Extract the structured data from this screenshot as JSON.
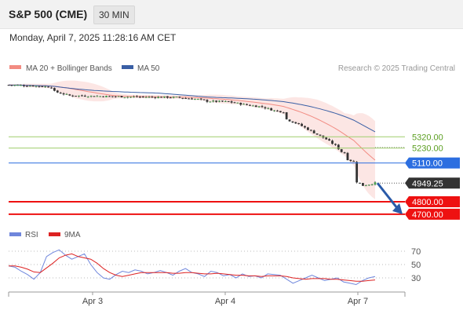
{
  "header": {
    "instrument": "S&P 500 (CME)",
    "timeframe": "30 MIN",
    "datetime": "Monday, April 7, 2025 11:28:16 AM CET"
  },
  "legend": {
    "ma20": "MA 20 + Bollinger Bands",
    "ma50": "MA 50",
    "copyright": "Research © 2025 Trading Central",
    "rsi": "RSI",
    "rsi_ma": "9MA"
  },
  "colors": {
    "ma20": "#f28b82",
    "ma50": "#3a5fa5",
    "resistance_green": "#9fce6c",
    "pivot_blue": "#2c6ee0",
    "support_red": "#ee1111",
    "price_tag": "#333333",
    "rsi": "#6f86dc",
    "rsi_ma": "#dd2222"
  },
  "chart_data": [
    {
      "type": "candlestick",
      "title": "",
      "x_ticks": [
        "Apr 3",
        "Apr 4",
        "Apr 7"
      ],
      "levels": [
        {
          "label": "5320.00",
          "value": 5320,
          "kind": "resistance"
        },
        {
          "label": "5230.00",
          "value": 5230,
          "kind": "resistance"
        },
        {
          "label": "5110.00",
          "value": 5110,
          "kind": "pivot"
        },
        {
          "label": "4800.00",
          "value": 4800,
          "kind": "support"
        },
        {
          "label": "4700.00",
          "value": 4700,
          "kind": "support"
        }
      ],
      "last_price": {
        "label": "4949.25",
        "value": 4949.25
      },
      "forecast": {
        "from": 4949.25,
        "to": 4700,
        "direction": "down"
      },
      "series": [
        {
          "name": "MA 20 + Bollinger Bands",
          "kind": "ma20_band"
        },
        {
          "name": "MA 50",
          "kind": "ma50"
        }
      ],
      "close_path": [
        [
          0,
          5735
        ],
        [
          8,
          5728
        ],
        [
          14,
          5718
        ],
        [
          15,
          5682
        ],
        [
          20,
          5650
        ],
        [
          28,
          5646
        ],
        [
          40,
          5640
        ],
        [
          55,
          5636
        ],
        [
          62,
          5620
        ],
        [
          65,
          5605
        ],
        [
          72,
          5600
        ],
        [
          78,
          5575
        ],
        [
          83,
          5560
        ],
        [
          87,
          5530
        ],
        [
          90,
          5520
        ],
        [
          91,
          5460
        ],
        [
          95,
          5420
        ],
        [
          98,
          5380
        ],
        [
          101,
          5340
        ],
        [
          104,
          5300
        ],
        [
          107,
          5250
        ],
        [
          109,
          5200
        ],
        [
          110,
          5190
        ],
        [
          111,
          5140
        ],
        [
          113,
          5120
        ],
        [
          114,
          4960
        ],
        [
          116,
          4930
        ],
        [
          118,
          4940
        ],
        [
          120,
          4949.25
        ]
      ]
    },
    {
      "type": "line",
      "title": "",
      "ylim": [
        0,
        100
      ],
      "y_ticks": [
        70,
        50,
        30
      ],
      "x_ticks": [
        "Apr 3",
        "Apr 4",
        "Apr 7"
      ],
      "series": [
        {
          "name": "RSI",
          "values": [
            48,
            46,
            40,
            35,
            28,
            38,
            62,
            68,
            72,
            64,
            58,
            62,
            66,
            50,
            38,
            30,
            28,
            35,
            40,
            38,
            42,
            40,
            36,
            38,
            41,
            38,
            34,
            40,
            44,
            38,
            36,
            32,
            40,
            38,
            33,
            35,
            30,
            36,
            32,
            33,
            30,
            36,
            35,
            34,
            28,
            22,
            26,
            30,
            34,
            30,
            26,
            28,
            30,
            24,
            22,
            20,
            26,
            30,
            32
          ]
        },
        {
          "name": "9MA",
          "values": [
            48,
            48,
            46,
            43,
            39,
            38,
            45,
            52,
            60,
            64,
            66,
            62,
            60,
            58,
            52,
            44,
            38,
            34,
            32,
            34,
            36,
            38,
            38,
            38,
            38,
            38,
            37,
            37,
            38,
            38,
            37,
            36,
            36,
            37,
            36,
            35,
            34,
            34,
            33,
            33,
            32,
            33,
            33,
            33,
            32,
            30,
            29,
            28,
            29,
            29,
            29,
            28,
            28,
            27,
            26,
            25,
            25,
            26,
            27
          ]
        }
      ]
    }
  ]
}
